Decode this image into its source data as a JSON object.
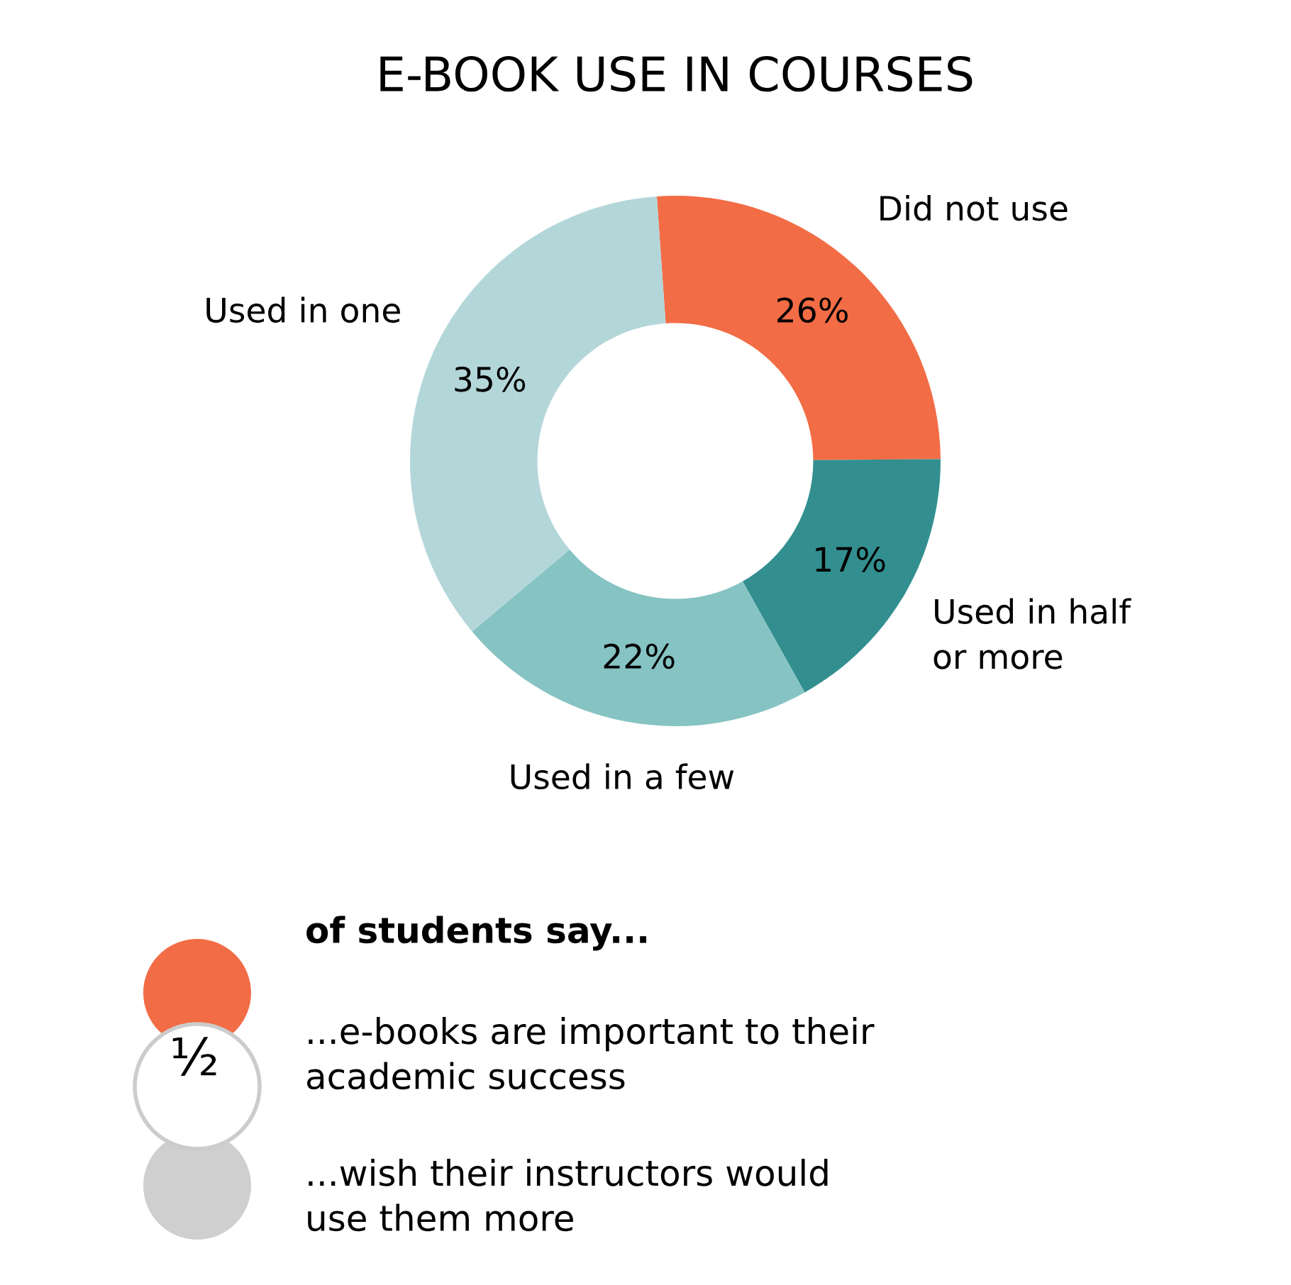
{
  "chart_data": {
    "type": "donut",
    "title": "E-BOOK USE IN COURSES",
    "categories": [
      "Did not use",
      "Used in half\nor more",
      "Used in a few",
      "Used in one"
    ],
    "values": [
      26,
      17,
      22,
      35
    ],
    "colors": [
      "#f26c45",
      "#338f8f",
      "#86c3c3",
      "#b3d6d9"
    ],
    "value_labels": [
      "26%",
      "17%",
      "22%",
      "35%"
    ],
    "legend": false,
    "annotations": [
      "of students say...",
      "½",
      "...e-books are important to their\nacademic success",
      "...wish their instructors would\nuse them more"
    ]
  }
}
